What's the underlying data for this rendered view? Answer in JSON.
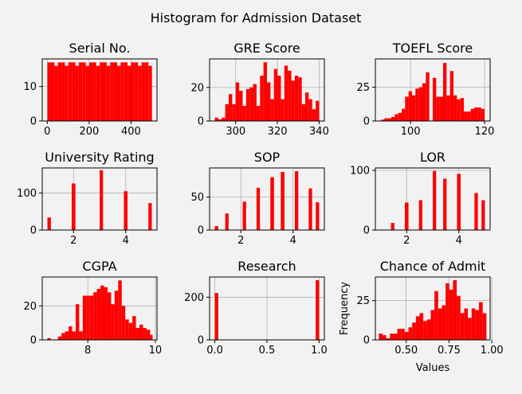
{
  "suptitle": "Histogram for Admission Dataset",
  "colors": {
    "bar": "#ff0000",
    "background": "#f2f2f2",
    "grid": "#b0b0b0",
    "axes": "#000000"
  },
  "chart_data": [
    {
      "type": "bar",
      "title": "Serial No.",
      "xlim": [
        -24,
        524
      ],
      "ylim": [
        0,
        18
      ],
      "xticks": [
        0,
        200,
        400
      ],
      "xtick_labels": [
        "0",
        "200",
        "400"
      ],
      "yticks": [
        0,
        10
      ],
      "ytick_labels": [
        "0",
        "10"
      ],
      "grid": true,
      "bin_edges": [
        1,
        17.63,
        34.27,
        50.9,
        67.53,
        84.17,
        100.8,
        117.43,
        134.07,
        150.7,
        167.33,
        183.97,
        200.6,
        217.23,
        233.87,
        250.5,
        267.13,
        283.77,
        300.4,
        317.03,
        333.67,
        350.3,
        366.93,
        383.57,
        400.2,
        416.83,
        433.47,
        450.1,
        466.73,
        483.37,
        500
      ],
      "values": [
        17,
        17,
        16,
        17,
        17,
        16,
        17,
        17,
        16,
        17,
        17,
        16,
        17,
        17,
        16,
        17,
        17,
        16,
        17,
        17,
        16,
        17,
        17,
        16,
        17,
        17,
        16,
        17,
        17,
        16
      ]
    },
    {
      "type": "bar",
      "title": "GRE Score",
      "xlim": [
        287.5,
        342.5
      ],
      "ylim": [
        0,
        37
      ],
      "xticks": [
        300,
        320,
        340
      ],
      "xtick_labels": [
        "300",
        "320",
        "340"
      ],
      "yticks": [
        0,
        20
      ],
      "ytick_labels": [
        "0",
        "20"
      ],
      "grid": true,
      "bin_edges": [
        290,
        291.67,
        293.33,
        295,
        296.67,
        298.33,
        300,
        301.67,
        303.33,
        305,
        306.67,
        308.33,
        310,
        311.67,
        313.33,
        315,
        316.67,
        318.33,
        320,
        321.67,
        323.33,
        325,
        326.67,
        328.33,
        330,
        331.67,
        333.33,
        335,
        336.67,
        338.33,
        340
      ],
      "values": [
        2,
        1,
        2,
        10,
        16,
        10,
        23,
        18,
        9,
        19,
        20,
        22,
        9,
        27,
        35,
        23,
        13,
        31,
        27,
        13,
        33,
        30,
        24,
        27,
        26,
        10,
        17,
        13,
        7,
        12
      ]
    },
    {
      "type": "bar",
      "title": "TOEFL Score",
      "xlim": [
        90.5,
        121.5
      ],
      "ylim": [
        0,
        46
      ],
      "xticks": [
        100,
        120
      ],
      "xtick_labels": [
        "100",
        "120"
      ],
      "yticks": [
        0,
        25
      ],
      "ytick_labels": [
        "0",
        "25"
      ],
      "grid": true,
      "bin_edges": [
        92,
        92.93,
        93.87,
        94.8,
        95.73,
        96.67,
        97.6,
        98.53,
        99.47,
        100.4,
        101.33,
        102.27,
        103.2,
        104.13,
        105.07,
        106,
        106.93,
        107.87,
        108.8,
        109.73,
        110.67,
        111.6,
        112.53,
        113.47,
        114.4,
        115.33,
        116.27,
        117.2,
        118.13,
        119.07,
        120
      ],
      "values": [
        1,
        2,
        2,
        3,
        5,
        6,
        9,
        18,
        22,
        19,
        24,
        25,
        28,
        36,
        0,
        32,
        18,
        18,
        43,
        19,
        37,
        19,
        16,
        17,
        7,
        7,
        9,
        10,
        10,
        9
      ]
    },
    {
      "type": "bar",
      "title": "University Rating",
      "xlim": [
        0.8,
        5.2
      ],
      "ylim": [
        0,
        168
      ],
      "xticks": [
        2,
        4
      ],
      "xtick_labels": [
        "2",
        "4"
      ],
      "yticks": [
        0,
        100
      ],
      "ytick_labels": [
        "0",
        "100"
      ],
      "grid": true,
      "bin_edges": [
        1,
        1.13,
        1.27,
        1.4,
        1.53,
        1.67,
        1.8,
        1.93,
        2.07,
        2.2,
        2.33,
        2.47,
        2.6,
        2.73,
        2.87,
        3,
        3.13,
        3.27,
        3.4,
        3.53,
        3.67,
        3.8,
        3.93,
        4.07,
        4.2,
        4.33,
        4.47,
        4.6,
        4.73,
        4.87,
        5
      ],
      "values": [
        34,
        0,
        0,
        0,
        0,
        0,
        0,
        126,
        0,
        0,
        0,
        0,
        0,
        0,
        0,
        162,
        0,
        0,
        0,
        0,
        0,
        0,
        105,
        0,
        0,
        0,
        0,
        0,
        0,
        73
      ]
    },
    {
      "type": "bar",
      "title": "SOP",
      "xlim": [
        0.8,
        5.2
      ],
      "ylim": [
        0,
        94
      ],
      "xticks": [
        2,
        4
      ],
      "xtick_labels": [
        "2",
        "4"
      ],
      "yticks": [
        0,
        50
      ],
      "ytick_labels": [
        "0",
        "50"
      ],
      "grid": true,
      "bin_edges": [
        1,
        1.13,
        1.27,
        1.4,
        1.53,
        1.67,
        1.8,
        1.93,
        2.07,
        2.2,
        2.33,
        2.47,
        2.6,
        2.73,
        2.87,
        3,
        3.13,
        3.27,
        3.4,
        3.53,
        3.67,
        3.8,
        3.93,
        4.07,
        4.2,
        4.33,
        4.47,
        4.6,
        4.73,
        4.87,
        5
      ],
      "values": [
        6,
        0,
        0,
        25,
        0,
        0,
        0,
        0,
        43,
        0,
        0,
        0,
        64,
        0,
        0,
        0,
        80,
        0,
        0,
        88,
        0,
        0,
        0,
        89,
        0,
        0,
        0,
        63,
        0,
        42
      ]
    },
    {
      "type": "bar",
      "title": "LOR",
      "xlim": [
        0.8,
        5.2
      ],
      "ylim": [
        0,
        104
      ],
      "xticks": [
        2,
        4
      ],
      "xtick_labels": [
        "2",
        "4"
      ],
      "yticks": [
        0,
        100
      ],
      "ytick_labels": [
        "0",
        "100"
      ],
      "grid": true,
      "bin_edges": [
        1,
        1.13,
        1.27,
        1.4,
        1.53,
        1.67,
        1.8,
        1.93,
        2.07,
        2.2,
        2.33,
        2.47,
        2.6,
        2.73,
        2.87,
        3,
        3.13,
        3.27,
        3.4,
        3.53,
        3.67,
        3.8,
        3.93,
        4.07,
        4.2,
        4.33,
        4.47,
        4.6,
        4.73,
        4.87,
        5
      ],
      "values": [
        0,
        0,
        0,
        12,
        0,
        0,
        0,
        46,
        0,
        0,
        0,
        50,
        0,
        0,
        0,
        99,
        0,
        0,
        86,
        0,
        0,
        0,
        94,
        0,
        0,
        0,
        0,
        62,
        0,
        50
      ]
    },
    {
      "type": "bar",
      "title": "CGPA",
      "xlim": [
        6.65,
        10.05
      ],
      "ylim": [
        0,
        37
      ],
      "xticks": [
        8,
        10
      ],
      "xtick_labels": [
        "8",
        "10"
      ],
      "yticks": [
        0,
        20
      ],
      "ytick_labels": [
        "0",
        "20"
      ],
      "grid": true,
      "bin_edges": [
        6.8,
        6.905,
        7.01,
        7.115,
        7.22,
        7.325,
        7.43,
        7.535,
        7.64,
        7.745,
        7.85,
        7.955,
        8.06,
        8.165,
        8.27,
        8.375,
        8.48,
        8.585,
        8.69,
        8.795,
        8.9,
        9.005,
        9.11,
        9.215,
        9.32,
        9.425,
        9.53,
        9.635,
        9.74,
        9.845,
        9.92
      ],
      "values": [
        1,
        0,
        0,
        2,
        4,
        5,
        8,
        5,
        21,
        5,
        26,
        26,
        26,
        28,
        30,
        32,
        31,
        28,
        21,
        29,
        35,
        20,
        12,
        10,
        14,
        7,
        9,
        7,
        6,
        3
      ]
    },
    {
      "type": "bar",
      "title": "Research",
      "xlim": [
        -0.05,
        1.05
      ],
      "ylim": [
        0,
        295
      ],
      "xticks": [
        0,
        0.5,
        1
      ],
      "xtick_labels": [
        "0.0",
        "0.5",
        "1.0"
      ],
      "yticks": [
        0,
        200
      ],
      "ytick_labels": [
        "0",
        "200"
      ],
      "grid": true,
      "bin_edges": [
        0,
        0.033,
        0.067,
        0.1,
        0.133,
        0.167,
        0.2,
        0.233,
        0.267,
        0.3,
        0.333,
        0.367,
        0.4,
        0.433,
        0.467,
        0.5,
        0.533,
        0.567,
        0.6,
        0.633,
        0.667,
        0.7,
        0.733,
        0.767,
        0.8,
        0.833,
        0.867,
        0.9,
        0.933,
        0.967,
        1
      ],
      "values": [
        220,
        0,
        0,
        0,
        0,
        0,
        0,
        0,
        0,
        0,
        0,
        0,
        0,
        0,
        0,
        0,
        0,
        0,
        0,
        0,
        0,
        0,
        0,
        0,
        0,
        0,
        0,
        0,
        0,
        280
      ]
    },
    {
      "type": "bar",
      "title": "Chance of Admit",
      "xlabel": "Values",
      "ylabel": "Frequency",
      "xlim": [
        0.32,
        0.99
      ],
      "ylim": [
        0,
        40
      ],
      "xticks": [
        0.5,
        0.75,
        1.0
      ],
      "xtick_labels": [
        "0.50",
        "0.75",
        "1.00"
      ],
      "yticks": [
        0,
        25
      ],
      "ytick_labels": [
        "0",
        "25"
      ],
      "grid": true,
      "bin_edges": [
        0.34,
        0.3617,
        0.3833,
        0.405,
        0.4267,
        0.4483,
        0.47,
        0.4917,
        0.5133,
        0.535,
        0.5567,
        0.5783,
        0.6,
        0.6217,
        0.6433,
        0.665,
        0.6867,
        0.7083,
        0.73,
        0.7517,
        0.7733,
        0.795,
        0.8167,
        0.8383,
        0.86,
        0.8817,
        0.9033,
        0.925,
        0.9467,
        0.9683,
        0.97
      ],
      "values": [
        4,
        3,
        1,
        4,
        4,
        7,
        7,
        5,
        8,
        11,
        15,
        17,
        12,
        13,
        19,
        31,
        20,
        22,
        36,
        32,
        38,
        28,
        17,
        20,
        14,
        20,
        19,
        24,
        17,
        0
      ]
    }
  ]
}
